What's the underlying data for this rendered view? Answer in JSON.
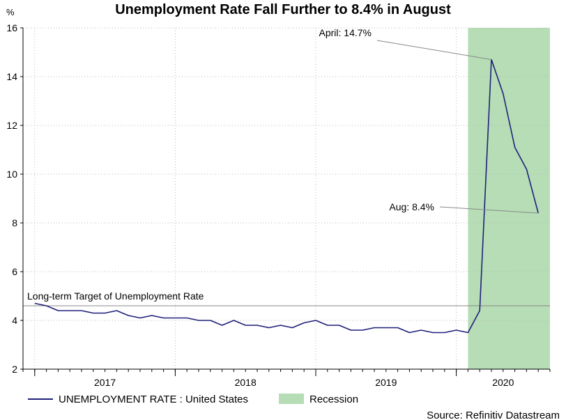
{
  "chart_data": {
    "type": "line",
    "title": "Unemployment Rate Fall Further to 8.4% in August",
    "y_unit": "%",
    "ylim": [
      2,
      16
    ],
    "y_ticks": [
      2,
      4,
      6,
      8,
      10,
      12,
      14,
      16
    ],
    "x_range": [
      "2016-12-01",
      "2020-09-01"
    ],
    "x_tick_labels": [
      {
        "label": "2017",
        "date": "2017-01-01"
      },
      {
        "label": "2018",
        "date": "2018-01-01"
      },
      {
        "label": "2019",
        "date": "2019-01-01"
      },
      {
        "label": "2020",
        "date": "2020-01-01"
      }
    ],
    "grid": true,
    "series": [
      {
        "name": "UNEMPLOYMENT RATE : United States",
        "color": "#1f1f7a",
        "x": [
          "2017-01",
          "2017-02",
          "2017-03",
          "2017-04",
          "2017-05",
          "2017-06",
          "2017-07",
          "2017-08",
          "2017-09",
          "2017-10",
          "2017-11",
          "2017-12",
          "2018-01",
          "2018-02",
          "2018-03",
          "2018-04",
          "2018-05",
          "2018-06",
          "2018-07",
          "2018-08",
          "2018-09",
          "2018-10",
          "2018-11",
          "2018-12",
          "2019-01",
          "2019-02",
          "2019-03",
          "2019-04",
          "2019-05",
          "2019-06",
          "2019-07",
          "2019-08",
          "2019-09",
          "2019-10",
          "2019-11",
          "2019-12",
          "2020-01",
          "2020-02",
          "2020-03",
          "2020-04",
          "2020-05",
          "2020-06",
          "2020-07",
          "2020-08"
        ],
        "values": [
          4.7,
          4.6,
          4.4,
          4.4,
          4.4,
          4.3,
          4.3,
          4.4,
          4.2,
          4.1,
          4.2,
          4.1,
          4.1,
          4.1,
          4.0,
          4.0,
          3.8,
          4.0,
          3.8,
          3.8,
          3.7,
          3.8,
          3.7,
          3.9,
          4.0,
          3.8,
          3.8,
          3.6,
          3.6,
          3.7,
          3.7,
          3.7,
          3.5,
          3.6,
          3.5,
          3.5,
          3.6,
          3.5,
          4.4,
          14.7,
          13.3,
          11.1,
          10.2,
          8.4
        ]
      }
    ],
    "recession": {
      "start": "2020-02-01",
      "end": "2020-09-01",
      "label": "Recession",
      "color": "#b6ddb6"
    },
    "reference_line": {
      "value": 4.6,
      "label": "Long-term Target of Unemployment Rate",
      "color": "#888888"
    },
    "annotations": [
      {
        "text": "April: 14.7%",
        "point_date": "2020-04",
        "point_value": 14.7
      },
      {
        "text": "Aug: 8.4%",
        "point_date": "2020-08",
        "point_value": 8.4
      }
    ],
    "legend_position": "bottom",
    "source": "Source: Refinitiv Datastream"
  }
}
